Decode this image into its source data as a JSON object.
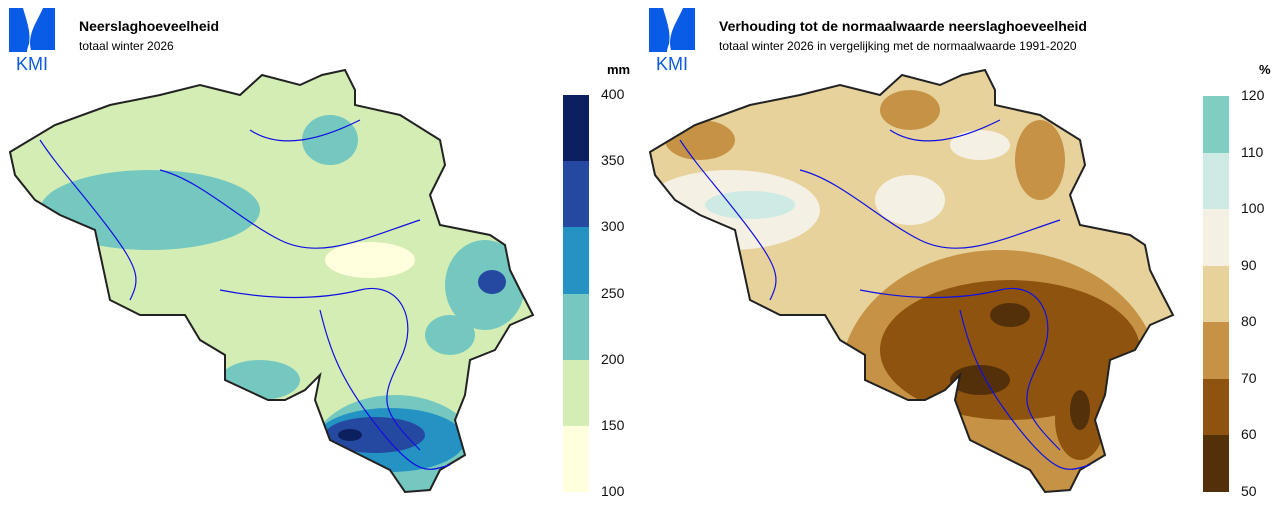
{
  "logo": {
    "text": "KMI",
    "color": "#0a5be6"
  },
  "left": {
    "title": "Neerslaghoeveelheid",
    "subtitle": "totaal winter 2026",
    "unit": "mm",
    "legend": {
      "ticks": [
        "400",
        "350",
        "300",
        "250",
        "200",
        "150",
        "100"
      ],
      "colors": [
        "#0c1f5e",
        "#2549a0",
        "#2592c4",
        "#74c8c0",
        "#d4edb5",
        "#ffffdd"
      ]
    }
  },
  "right": {
    "title": "Verhouding tot de normaalwaarde neerslaghoeveelheid",
    "subtitle": "totaal winter 2026 in vergelijking met de normaalwaarde 1991-2020",
    "unit": "%",
    "legend": {
      "ticks": [
        "120",
        "110",
        "100",
        "90",
        "80",
        "70",
        "60",
        "50"
      ],
      "colors": [
        "#80cdc1",
        "#cdeae5",
        "#f5f0e4",
        "#e8d29c",
        "#c69346",
        "#8e530f",
        "#53300a"
      ]
    }
  }
}
